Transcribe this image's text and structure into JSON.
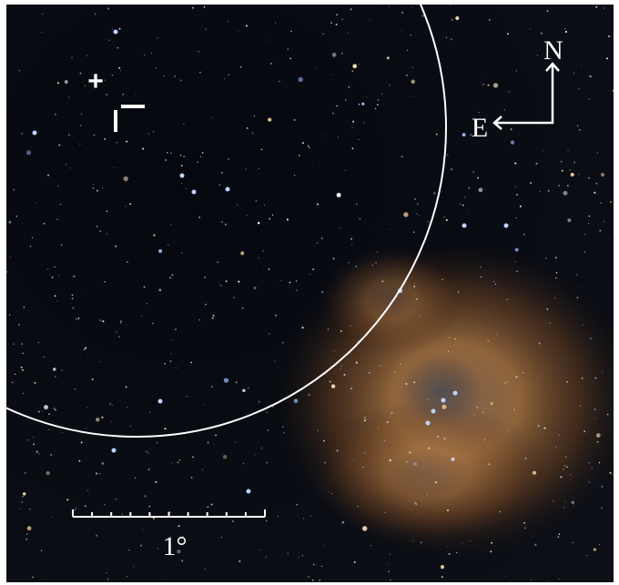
{
  "marker": {
    "label": "+"
  },
  "compass": {
    "north": "N",
    "east": "E"
  },
  "scale_bar": {
    "label": "1°"
  }
}
